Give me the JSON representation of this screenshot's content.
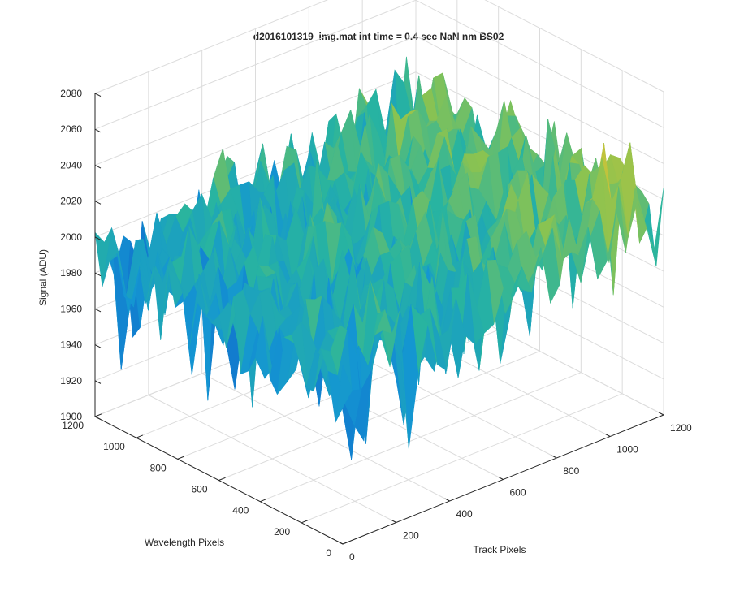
{
  "chart_data": {
    "type": "surface",
    "title": "d2016101319_img.mat int time = 0.4 sec  NaN nm BS02",
    "xlabel": "Track Pixels",
    "ylabel": "Wavelength Pixels",
    "zlabel": "Signal (ADU)",
    "xlim": [
      0,
      1200
    ],
    "ylim": [
      0,
      1200
    ],
    "zlim": [
      1900,
      2080
    ],
    "x_ticks": [
      "0",
      "200",
      "400",
      "600",
      "800",
      "1000",
      "1200"
    ],
    "y_ticks": [
      "0",
      "200",
      "400",
      "600",
      "800",
      "1000",
      "1200"
    ],
    "z_ticks": [
      "1900",
      "1920",
      "1940",
      "1960",
      "1980",
      "2000",
      "2020",
      "2040",
      "2060",
      "2080"
    ],
    "grid": true,
    "colormap": "parula",
    "colors": {
      "low": "#0f6fc9",
      "mid": "#28b3a7",
      "high": "#e8c12c",
      "axis": "#262626",
      "grid": "#dcdcdc"
    },
    "surface": {
      "description_values": "Noisy dark-frame surface; signal mostly 1950–2040 ADU, mean ≈ 2000, rising toward high Track Pixels",
      "mean_signal": 2000,
      "min_signal": 1905,
      "max_signal": 2070
    }
  }
}
